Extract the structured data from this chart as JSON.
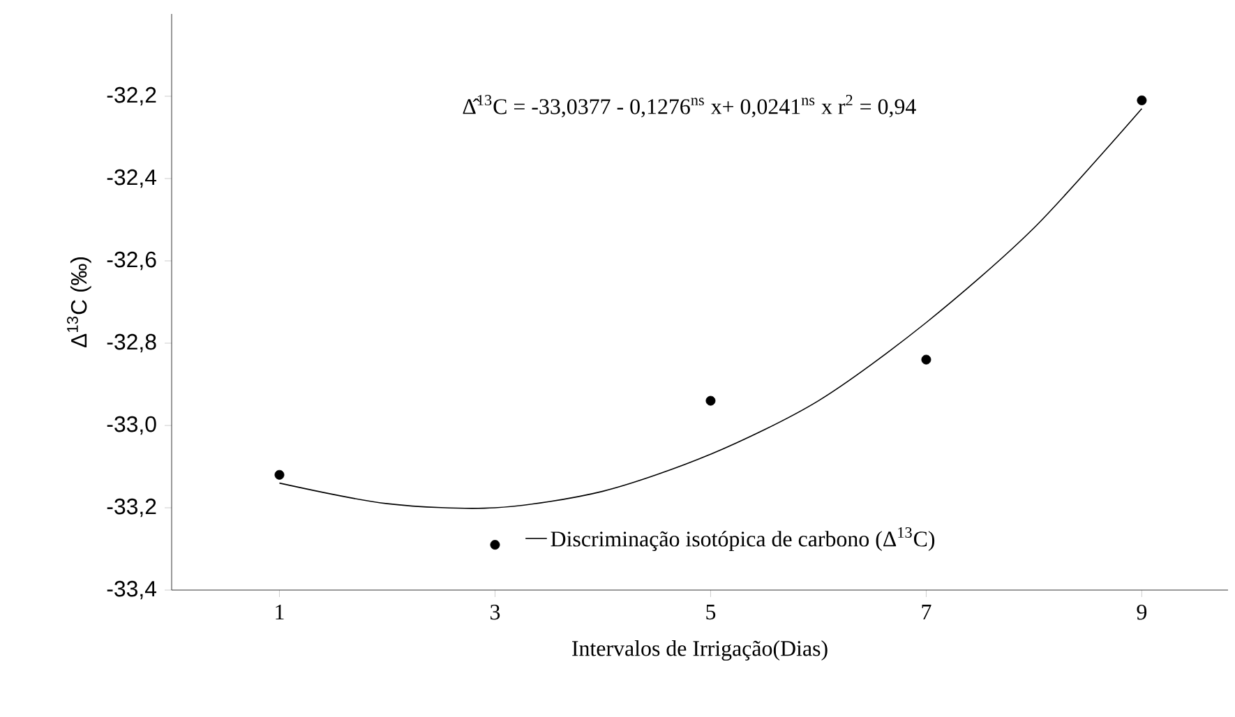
{
  "chart_data": {
    "type": "scatter",
    "xlabel": "Intervalos de Irrigação(Dias)",
    "ylabel": "Δ$^{13}$C (‰)",
    "annotations": [
      "Δ̂$^{13}$C = -33,0377 - 0,1276$^{ns}$ x+ 0,0241$^{ns}$ x  r$^{2}$ = 0,94"
    ],
    "xlim": [
      0,
      9.8
    ],
    "ylim": [
      -33.4,
      -32.0
    ],
    "xticks": [
      1,
      3,
      5,
      7,
      9
    ],
    "yticks": [
      {
        "value": -33.4,
        "label": "-33,4"
      },
      {
        "value": -33.2,
        "label": "-33,2"
      },
      {
        "value": -33.0,
        "label": "-33,0"
      },
      {
        "value": -32.8,
        "label": "-32,8"
      },
      {
        "value": -32.6,
        "label": "-32,6"
      },
      {
        "value": -32.4,
        "label": "-32,4"
      },
      {
        "value": -32.2,
        "label": "-32,2"
      }
    ],
    "legend": "bottom",
    "grid": false,
    "series": [
      {
        "color": "#000000",
        "marker": "circle",
        "x": [
          1,
          3,
          5,
          7,
          9
        ],
        "values": [
          -33.12,
          -33.29,
          -32.94,
          -32.84,
          -32.21
        ]
      },
      {
        "type": "line",
        "name": "Discriminação isotópica de carbono (Δ$^{13}$C)",
        "color": "#000000",
        "marker": "none",
        "line_style": "solid",
        "x": [
          1,
          2,
          3,
          4,
          5,
          6,
          7,
          8,
          9
        ],
        "values": [
          -33.14,
          -33.19,
          -33.2,
          -33.16,
          -33.07,
          -32.94,
          -32.75,
          -32.52,
          -32.23
        ]
      }
    ]
  }
}
